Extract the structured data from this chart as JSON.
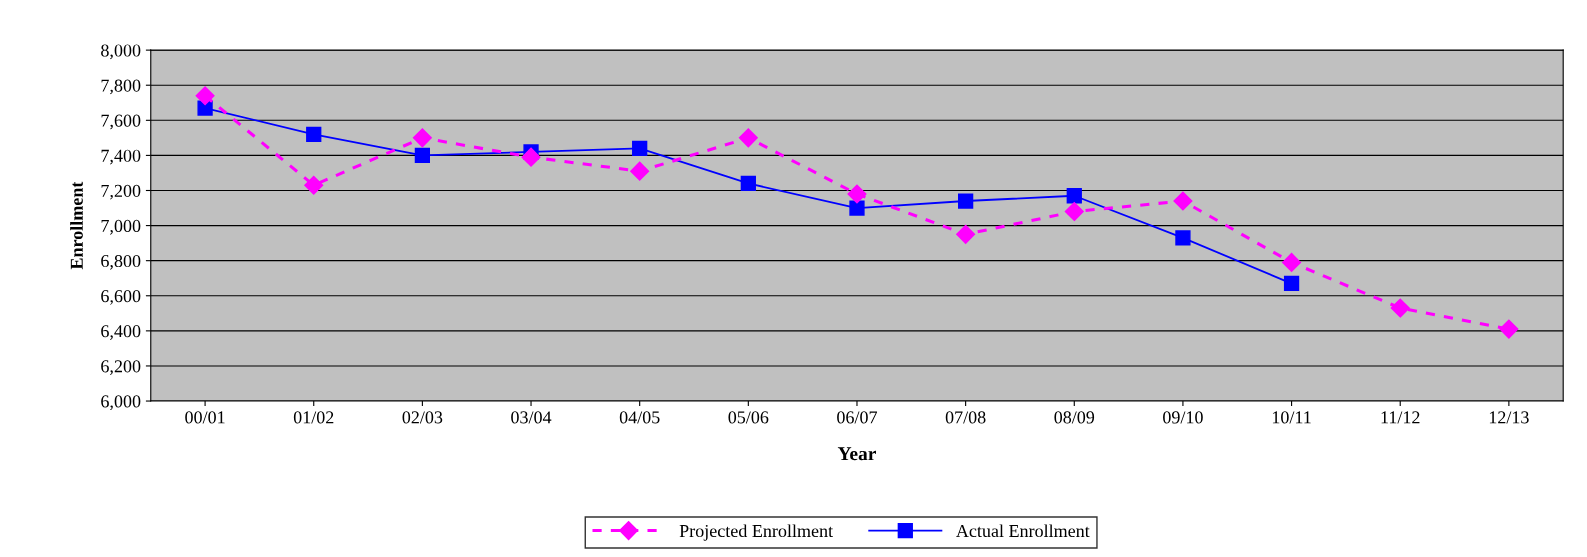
{
  "chart_data": {
    "type": "line",
    "xlabel": "Year",
    "ylabel": "Enrollment",
    "categories": [
      "00/01",
      "01/02",
      "02/03",
      "03/04",
      "04/05",
      "05/06",
      "06/07",
      "07/08",
      "08/09",
      "09/10",
      "10/11",
      "11/12",
      "12/13"
    ],
    "series": [
      {
        "name": "Projected Enrollment",
        "color": "#ff00ff",
        "marker": "diamond",
        "line_style": "dashed",
        "values": [
          7740,
          7230,
          7500,
          7390,
          7310,
          7500,
          7180,
          6950,
          7080,
          7140,
          6790,
          6530,
          6410
        ]
      },
      {
        "name": "Actual Enrollment",
        "color": "#0000ff",
        "marker": "square",
        "line_style": "solid",
        "values": [
          7670,
          7520,
          7400,
          7420,
          7440,
          7240,
          7100,
          7140,
          7170,
          6930,
          6670,
          null,
          null
        ]
      }
    ],
    "ylim": [
      6000,
      8000
    ],
    "yticks": [
      {
        "value": 6000,
        "label": "6,000"
      },
      {
        "value": 6200,
        "label": "6,200"
      },
      {
        "value": 6400,
        "label": "6,400"
      },
      {
        "value": 6600,
        "label": "6,600"
      },
      {
        "value": 6800,
        "label": "6,800"
      },
      {
        "value": 7000,
        "label": "7,000"
      },
      {
        "value": 7200,
        "label": "7,200"
      },
      {
        "value": 7400,
        "label": "7,400"
      },
      {
        "value": 7600,
        "label": "7,600"
      },
      {
        "value": 7800,
        "label": "7,800"
      },
      {
        "value": 8000,
        "label": "8,000"
      }
    ],
    "grid": "y",
    "legend": "bottom"
  }
}
